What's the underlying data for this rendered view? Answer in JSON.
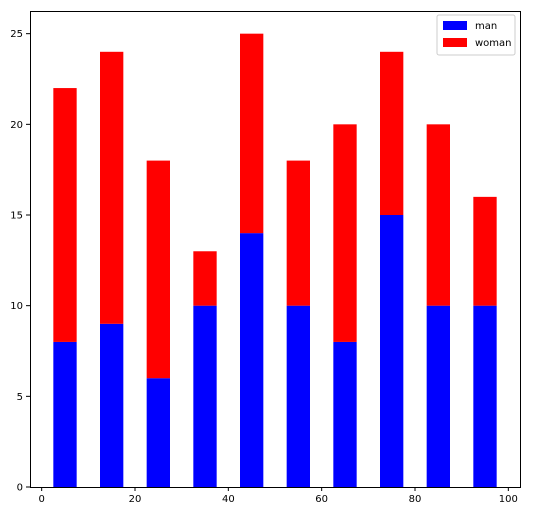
{
  "chart_data": {
    "type": "bar",
    "stacked": true,
    "x": [
      5,
      15,
      25,
      35,
      45,
      55,
      65,
      75,
      85,
      95
    ],
    "bar_width": 5,
    "series": [
      {
        "name": "man",
        "color": "#0000ff",
        "values": [
          8,
          9,
          6,
          10,
          14,
          10,
          8,
          15,
          10,
          10
        ]
      },
      {
        "name": "woman",
        "color": "#ff0000",
        "values": [
          14,
          15,
          12,
          3,
          11,
          8,
          12,
          9,
          10,
          6
        ]
      }
    ],
    "xlim": [
      -2.5,
      102.5
    ],
    "ylim": [
      0,
      26.25
    ],
    "xticks": [
      0,
      20,
      40,
      60,
      80,
      100
    ],
    "yticks": [
      0,
      5,
      10,
      15,
      20,
      25
    ],
    "title": "",
    "xlabel": "",
    "ylabel": "",
    "grid": false,
    "legend_position": "top-right"
  }
}
